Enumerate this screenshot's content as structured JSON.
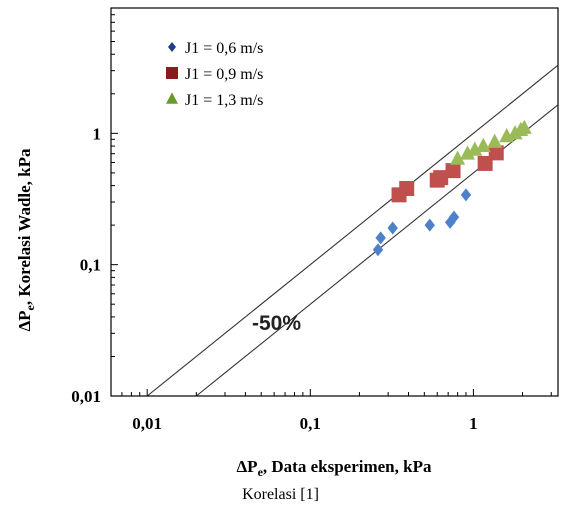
{
  "chart_data": {
    "type": "scatter",
    "xlabel": "ΔPe, Data eksperimen, kPa",
    "ylabel": "ΔPe, Korelasi Wadle, kPa",
    "xscale": "log",
    "yscale": "log",
    "xlim": [
      0.006,
      3.3
    ],
    "ylim": [
      0.01,
      9
    ],
    "xticks": [
      0.01,
      0.1,
      1
    ],
    "xtick_labels": [
      "0,01",
      "0,1",
      "1"
    ],
    "yticks": [
      0.01,
      0.1,
      1
    ],
    "ytick_labels": [
      "0,01",
      "0,1",
      "1"
    ],
    "grid": false,
    "legend_position": "top-left",
    "reference_lines": [
      {
        "label": "",
        "factor": 1.0
      },
      {
        "label": "",
        "factor": 0.5
      }
    ],
    "annotation": "-50%",
    "series": [
      {
        "name": "J1 = 0,6 m/s",
        "marker": "diamond",
        "color": "#4f81c9",
        "points": [
          [
            0.26,
            0.13
          ],
          [
            0.27,
            0.16
          ],
          [
            0.32,
            0.19
          ],
          [
            0.54,
            0.2
          ],
          [
            0.72,
            0.21
          ],
          [
            0.76,
            0.23
          ],
          [
            0.9,
            0.34
          ]
        ]
      },
      {
        "name": "J1 = 0,9 m/s",
        "marker": "square",
        "color": "#c0504d",
        "points": [
          [
            0.35,
            0.34
          ],
          [
            0.39,
            0.38
          ],
          [
            0.6,
            0.44
          ],
          [
            0.63,
            0.46
          ],
          [
            0.75,
            0.52
          ],
          [
            1.18,
            0.59
          ],
          [
            1.38,
            0.71
          ]
        ]
      },
      {
        "name": "J1 = 1,3 m/s",
        "marker": "triangle",
        "color": "#9bbb59",
        "points": [
          [
            0.8,
            0.64
          ],
          [
            0.92,
            0.7
          ],
          [
            1.02,
            0.75
          ],
          [
            1.15,
            0.8
          ],
          [
            1.35,
            0.86
          ],
          [
            1.6,
            0.95
          ],
          [
            1.8,
            1.0
          ],
          [
            1.95,
            1.06
          ],
          [
            2.05,
            1.1
          ]
        ]
      }
    ]
  },
  "legend_colors": {
    "J1 = 0,6 m/s": "#1f3d8a",
    "J1 = 0,9 m/s": "#8b1a1a",
    "J1 = 1,3 m/s": "#6a9b2a"
  },
  "caption": "Korelasi [1]"
}
